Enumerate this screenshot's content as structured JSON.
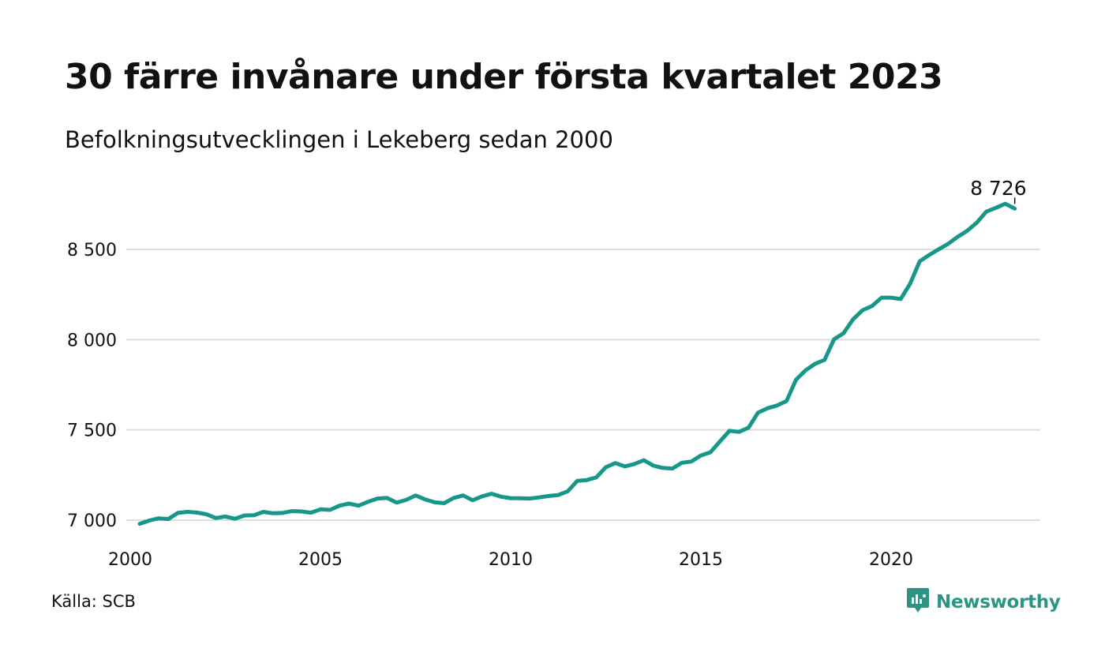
{
  "title": "30 färre invånare under första kvartalet 2023",
  "subtitle": "Befolkningsutvecklingen i Lekeberg sedan 2000",
  "source": "Källa: SCB",
  "brand": {
    "name": "Newsworthy",
    "icon": "newsworthy-logo-icon",
    "color": "#2a9485"
  },
  "colors": {
    "line": "#17978a",
    "grid": "#dddddd",
    "text": "#111111"
  },
  "chart_data": {
    "type": "line",
    "title": "30 färre invånare under första kvartalet 2023",
    "subtitle": "Befolkningsutvecklingen i Lekeberg sedan 2000",
    "xlabel": "",
    "ylabel": "",
    "xlim": [
      2000,
      2024
    ],
    "ylim": [
      7000,
      8800
    ],
    "grid": true,
    "legend": "none",
    "x_ticks": [
      {
        "value": 2000,
        "label": "2000"
      },
      {
        "value": 2005,
        "label": "2005"
      },
      {
        "value": 2010,
        "label": "2010"
      },
      {
        "value": 2015,
        "label": "2015"
      },
      {
        "value": 2020,
        "label": "2020"
      }
    ],
    "y_ticks": [
      {
        "value": 7000,
        "label": "7 000"
      },
      {
        "value": 7500,
        "label": "7 500"
      },
      {
        "value": 8000,
        "label": "8 000"
      },
      {
        "value": 8500,
        "label": "8 500"
      }
    ],
    "annotation": {
      "x": 2023.25,
      "y": 8726,
      "label": "8 726"
    },
    "series": [
      {
        "x": [
          2000.25,
          2000.5,
          2000.75,
          2001,
          2001.25,
          2001.5,
          2001.75,
          2002,
          2002.25,
          2002.5,
          2002.75,
          2003,
          2003.25,
          2003.5,
          2003.75,
          2004,
          2004.25,
          2004.5,
          2004.75,
          2005,
          2005.25,
          2005.5,
          2005.75,
          2006,
          2006.25,
          2006.5,
          2006.75,
          2007,
          2007.25,
          2007.5,
          2007.75,
          2008,
          2008.25,
          2008.5,
          2008.75,
          2009,
          2009.25,
          2009.5,
          2009.75,
          2010,
          2010.25,
          2010.5,
          2010.75,
          2011,
          2011.25,
          2011.5,
          2011.75,
          2012,
          2012.25,
          2012.5,
          2012.75,
          2013,
          2013.25,
          2013.5,
          2013.75,
          2014,
          2014.25,
          2014.5,
          2014.75,
          2015,
          2015.25,
          2015.5,
          2015.75,
          2016,
          2016.25,
          2016.5,
          2016.75,
          2017,
          2017.25,
          2017.5,
          2017.75,
          2018,
          2018.25,
          2018.5,
          2018.75,
          2019,
          2019.25,
          2019.5,
          2019.75,
          2020,
          2020.25,
          2020.5,
          2020.75,
          2021,
          2021.25,
          2021.5,
          2021.75,
          2022,
          2022.25,
          2022.5,
          2022.75,
          2023,
          2023.25
        ],
        "y": [
          6980,
          6998,
          7010,
          7006,
          7040,
          7046,
          7042,
          7033,
          7012,
          7020,
          7008,
          7026,
          7027,
          7046,
          7038,
          7040,
          7050,
          7048,
          7041,
          7060,
          7057,
          7080,
          7092,
          7080,
          7102,
          7120,
          7123,
          7097,
          7112,
          7137,
          7115,
          7099,
          7094,
          7123,
          7137,
          7110,
          7132,
          7146,
          7130,
          7122,
          7121,
          7120,
          7126,
          7134,
          7139,
          7160,
          7218,
          7222,
          7237,
          7293,
          7316,
          7298,
          7311,
          7332,
          7302,
          7289,
          7286,
          7318,
          7325,
          7358,
          7376,
          7436,
          7495,
          7489,
          7512,
          7595,
          7620,
          7635,
          7660,
          7778,
          7830,
          7866,
          7888,
          8002,
          8036,
          8113,
          8163,
          8187,
          8233,
          8233,
          8225,
          8310,
          8434,
          8469,
          8501,
          8531,
          8570,
          8603,
          8648,
          8709,
          8730,
          8753,
          8726
        ]
      }
    ]
  }
}
